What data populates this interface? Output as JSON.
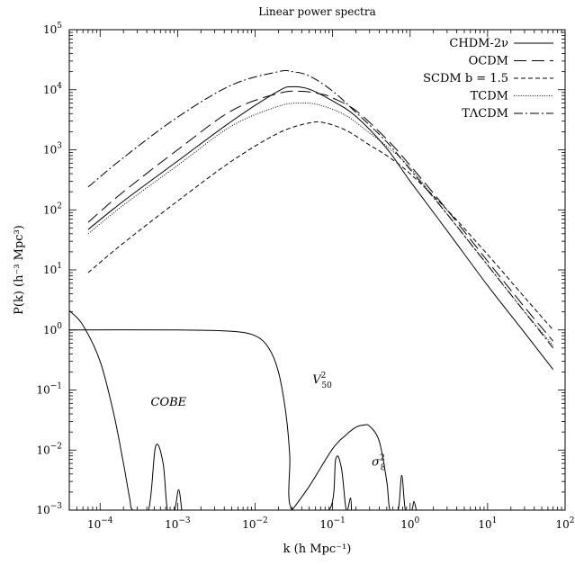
{
  "chart_data": {
    "type": "line",
    "title": "Linear power spectra",
    "xlabel": "k (h Mpc⁻¹)",
    "ylabel": "P(k) (h⁻³ Mpc³)",
    "xscale": "log",
    "yscale": "log",
    "xlim": [
      4e-05,
      100
    ],
    "ylim": [
      0.001,
      100000
    ],
    "x_ticks": [
      {
        "value": 0.0001,
        "mant": "10",
        "exp": "−4"
      },
      {
        "value": 0.001,
        "mant": "10",
        "exp": "−3"
      },
      {
        "value": 0.01,
        "mant": "10",
        "exp": "−2"
      },
      {
        "value": 0.1,
        "mant": "10",
        "exp": "−1"
      },
      {
        "value": 1,
        "mant": "10",
        "exp": "0"
      },
      {
        "value": 10,
        "mant": "10",
        "exp": "1"
      },
      {
        "value": 100,
        "mant": "10",
        "exp": "2"
      }
    ],
    "y_ticks": [
      {
        "value": 0.001,
        "mant": "10",
        "exp": "−3"
      },
      {
        "value": 0.01,
        "mant": "10",
        "exp": "−2"
      },
      {
        "value": 0.1,
        "mant": "10",
        "exp": "−1"
      },
      {
        "value": 1,
        "mant": "10",
        "exp": "0"
      },
      {
        "value": 10,
        "mant": "10",
        "exp": "1"
      },
      {
        "value": 100,
        "mant": "10",
        "exp": "2"
      },
      {
        "value": 1000,
        "mant": "10",
        "exp": "3"
      },
      {
        "value": 10000,
        "mant": "10",
        "exp": "4"
      },
      {
        "value": 100000,
        "mant": "10",
        "exp": "5"
      }
    ],
    "legend_position": "top-right",
    "series": [
      {
        "name": "CHDM-2ν",
        "dash": "solid",
        "x": [
          7e-05,
          0.0002,
          0.001,
          0.005,
          0.02,
          0.03,
          0.05,
          0.1,
          0.2,
          0.5,
          1,
          3,
          10,
          30,
          70
        ],
        "y": [
          47,
          140,
          650,
          3000,
          9500,
          11200,
          10200,
          6500,
          3600,
          1050,
          300,
          45,
          5.5,
          0.9,
          0.22
        ]
      },
      {
        "name": "OCDM",
        "dash": "longdash",
        "x": [
          7e-05,
          0.0002,
          0.001,
          0.005,
          0.02,
          0.04,
          0.07,
          0.1,
          0.2,
          0.5,
          1,
          3,
          10,
          30,
          70
        ],
        "y": [
          62,
          200,
          1000,
          4500,
          8700,
          9400,
          8500,
          7300,
          4500,
          1500,
          550,
          100,
          14,
          2.4,
          0.65
        ]
      },
      {
        "name": "SCDM b = 1.5",
        "dash": "dash",
        "x": [
          7e-05,
          0.0002,
          0.001,
          0.005,
          0.02,
          0.05,
          0.08,
          0.15,
          0.3,
          0.5,
          1,
          3,
          10,
          30,
          70
        ],
        "y": [
          9,
          28,
          140,
          650,
          1900,
          2800,
          2800,
          2100,
          1200,
          800,
          400,
          100,
          18,
          3.5,
          1.0
        ]
      },
      {
        "name": "TCDM",
        "dash": "dot",
        "x": [
          7e-05,
          0.0002,
          0.001,
          0.005,
          0.02,
          0.04,
          0.07,
          0.15,
          0.3,
          0.5,
          1,
          3,
          10,
          30,
          70
        ],
        "y": [
          40,
          120,
          550,
          2500,
          5300,
          6000,
          5500,
          3700,
          1900,
          1150,
          500,
          85,
          12,
          2.0,
          0.55
        ]
      },
      {
        "name": "TΛCDM",
        "dash": "dashdot",
        "x": [
          7e-05,
          0.0002,
          0.001,
          0.005,
          0.02,
          0.03,
          0.05,
          0.1,
          0.2,
          0.5,
          1,
          3,
          10,
          30,
          70
        ],
        "y": [
          240,
          740,
          3500,
          12000,
          20000,
          20000,
          17000,
          9500,
          4200,
          1350,
          470,
          85,
          12,
          2.0,
          0.5
        ]
      },
      {
        "name": "COBE window",
        "dash": "solid",
        "x": [
          4e-05,
          6e-05,
          0.0001,
          0.00015,
          0.0002,
          0.00024,
          0.000265,
          0.00042,
          0.00052,
          0.00065,
          0.00074,
          0.00091,
          0.00103,
          0.00113
        ],
        "y": [
          2.1,
          1.2,
          0.3,
          0.04,
          0.006,
          0.0016,
          0.001,
          0.001,
          0.0115,
          0.006,
          0.001,
          0.001,
          0.0022,
          0.001
        ]
      },
      {
        "name": "V50² window",
        "dash": "solid",
        "x": [
          4e-05,
          0.001,
          0.005,
          0.01,
          0.015,
          0.02,
          0.025,
          0.028,
          0.03,
          0.09,
          0.11,
          0.13,
          0.15,
          0.17,
          0.175
        ],
        "y": [
          1.0,
          1.0,
          0.95,
          0.8,
          0.5,
          0.2,
          0.04,
          0.008,
          0.001,
          0.001,
          0.0072,
          0.005,
          0.001,
          0.0016,
          0.001
        ]
      },
      {
        "name": "σ8² window",
        "dash": "solid",
        "x": [
          0.03,
          0.05,
          0.1,
          0.15,
          0.2,
          0.25,
          0.3,
          0.4,
          0.5,
          0.55,
          0.7,
          0.78,
          0.87,
          1.05,
          1.12,
          1.2
        ],
        "y": [
          0.001,
          0.0025,
          0.0105,
          0.018,
          0.024,
          0.026,
          0.025,
          0.014,
          0.003,
          0.001,
          0.001,
          0.0038,
          0.001,
          0.001,
          0.0014,
          0.001
        ]
      }
    ],
    "annotations": [
      {
        "text": "COBE",
        "x": 0.00045,
        "y": 0.055,
        "style": "italic"
      },
      {
        "text": "V",
        "sup": "2",
        "sub": "50",
        "x": 0.055,
        "y": 0.13
      },
      {
        "text": "σ",
        "sup": "2",
        "sub": "8",
        "x": 0.32,
        "y": 0.0055
      }
    ]
  }
}
